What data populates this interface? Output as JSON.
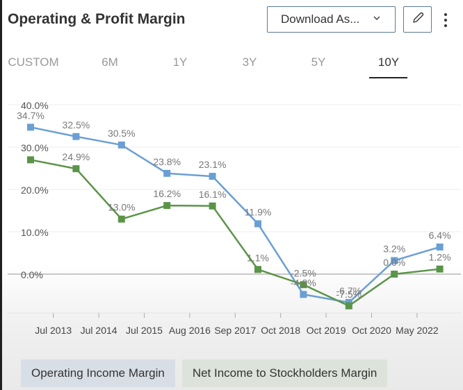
{
  "header": {
    "title": "Operating & Profit Margin",
    "download_label": "Download As...",
    "download_chevron": "⌄",
    "edit_icon": "pencil-icon",
    "more_icon": "more-vertical-icon"
  },
  "tabs": [
    {
      "label": "CUSTOM",
      "active": false
    },
    {
      "label": "6M",
      "active": false
    },
    {
      "label": "1Y",
      "active": false
    },
    {
      "label": "3Y",
      "active": false
    },
    {
      "label": "5Y",
      "active": false
    },
    {
      "label": "10Y",
      "active": true
    }
  ],
  "colors": {
    "operating": "#6a9fd4",
    "net": "#5a9447",
    "operating_legend_bg": "#d8dee6",
    "net_legend_bg": "#dde3da"
  },
  "chart_data": {
    "type": "line",
    "title": "Operating & Profit Margin",
    "xlabel": "",
    "ylabel": "",
    "ylim": [
      -10,
      40
    ],
    "yticks": [
      "0.0%",
      "10.0%",
      "20.0%",
      "30.0%",
      "40.0%"
    ],
    "ytick_values": [
      0,
      10,
      20,
      30,
      40
    ],
    "xticks": [
      "Jul 2013",
      "Jul 2014",
      "Jul 2015",
      "Aug 2016",
      "Sep 2017",
      "Oct 2018",
      "Oct 2019",
      "Oct 2020",
      "May 2022"
    ],
    "grid": true,
    "legend_position": "bottom",
    "series": [
      {
        "name": "Operating Income Margin",
        "values": [
          34.7,
          32.5,
          30.5,
          23.8,
          23.1,
          11.9,
          -4.8,
          -6.7,
          3.2,
          6.4
        ],
        "labels": [
          "34.7%",
          "32.5%",
          "30.5%",
          "23.8%",
          "23.1%",
          "11.9%",
          "-4.8%",
          "-6.7%",
          "3.2%",
          "6.4%"
        ]
      },
      {
        "name": "Net Income to Stockholders Margin",
        "values": [
          27.0,
          24.9,
          13.0,
          16.2,
          16.1,
          1.1,
          -2.5,
          -7.5,
          0.0,
          1.2
        ],
        "labels": [
          "",
          "24.9%",
          "13.0%",
          "16.2%",
          "16.1%",
          "1.1%",
          "-2.5%",
          "-7.5%",
          "0.0%",
          "1.2%"
        ]
      }
    ]
  },
  "legend": [
    {
      "label": "Operating Income Margin"
    },
    {
      "label": "Net Income to Stockholders Margin"
    }
  ]
}
